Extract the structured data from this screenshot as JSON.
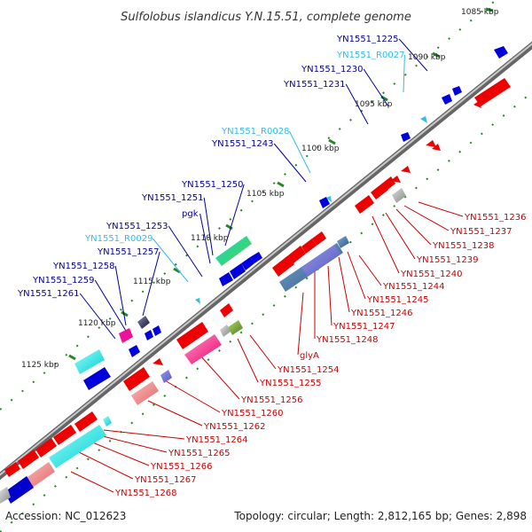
{
  "title": "Sulfolobus islandicus Y.N.15.51, complete genome",
  "footer": {
    "accession": "Accession: NC_012623",
    "summary": "Topology: circular; Length: 2,812,165 bp; Genes: 2,898"
  },
  "colors": {
    "forward": "#0000ee",
    "reverse": "#ee0000",
    "rna": "#33bbee",
    "backbone": "#888888",
    "tick": "#228822"
  },
  "ticks": [
    {
      "label": "1085 kbp"
    },
    {
      "label": "1090 kbp"
    },
    {
      "label": "1095 kbp"
    },
    {
      "label": "1100 kbp"
    },
    {
      "label": "1105 kbp"
    },
    {
      "label": "1110 kbp"
    },
    {
      "label": "1115 kbp"
    },
    {
      "label": "1120 kbp"
    },
    {
      "label": "1125 kbp"
    }
  ],
  "forward_labels": [
    {
      "label": "YN1551_1225",
      "color": "#000099"
    },
    {
      "label": "YN1551_R0027",
      "color": "#33bbee"
    },
    {
      "label": "YN1551_1230",
      "color": "#000099"
    },
    {
      "label": "YN1551_1231",
      "color": "#000099"
    },
    {
      "label": "YN1551_R0028",
      "color": "#33bbee"
    },
    {
      "label": "YN1551_1243",
      "color": "#000099"
    },
    {
      "label": "YN1551_1250",
      "color": "#000099"
    },
    {
      "label": "YN1551_1251",
      "color": "#000099"
    },
    {
      "label": "pgk",
      "color": "#000099"
    },
    {
      "label": "YN1551_1253",
      "color": "#000099"
    },
    {
      "label": "YN1551_R0029",
      "color": "#33bbee"
    },
    {
      "label": "YN1551_1257",
      "color": "#000099"
    },
    {
      "label": "YN1551_1258",
      "color": "#000099"
    },
    {
      "label": "YN1551_1259",
      "color": "#000099"
    },
    {
      "label": "YN1551_1261",
      "color": "#000099"
    }
  ],
  "reverse_labels": [
    {
      "label": "YN1551_1236",
      "color": "#cc0000"
    },
    {
      "label": "YN1551_1237",
      "color": "#cc0000"
    },
    {
      "label": "YN1551_1238",
      "color": "#cc0000"
    },
    {
      "label": "YN1551_1239",
      "color": "#cc0000"
    },
    {
      "label": "YN1551_1240",
      "color": "#cc0000"
    },
    {
      "label": "YN1551_1244",
      "color": "#cc0000"
    },
    {
      "label": "YN1551_1245",
      "color": "#cc0000"
    },
    {
      "label": "YN1551_1246",
      "color": "#cc0000"
    },
    {
      "label": "YN1551_1247",
      "color": "#cc0000"
    },
    {
      "label": "YN1551_1248",
      "color": "#cc0000"
    },
    {
      "label": "glyA",
      "color": "#cc0000"
    },
    {
      "label": "YN1551_1254",
      "color": "#cc0000"
    },
    {
      "label": "YN1551_1255",
      "color": "#cc0000"
    },
    {
      "label": "YN1551_1256",
      "color": "#cc0000"
    },
    {
      "label": "YN1551_1260",
      "color": "#cc0000"
    },
    {
      "label": "YN1551_1262",
      "color": "#cc0000"
    },
    {
      "label": "YN1551_1264",
      "color": "#cc0000"
    },
    {
      "label": "YN1551_1265",
      "color": "#cc0000"
    },
    {
      "label": "YN1551_1266",
      "color": "#cc0000"
    },
    {
      "label": "YN1551_1267",
      "color": "#cc0000"
    },
    {
      "label": "YN1551_1268",
      "color": "#cc0000"
    }
  ]
}
